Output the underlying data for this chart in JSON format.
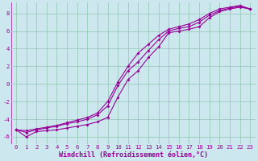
{
  "background_color": "#cce8ee",
  "grid_color": "#99ccbb",
  "line_color": "#990099",
  "marker": "D",
  "markersize": 2.0,
  "linewidth": 0.8,
  "xlabel": "Windchill (Refroidissement éolien,°C)",
  "xlabel_fontsize": 6.0,
  "tick_fontsize": 5.2,
  "xlim": [
    -0.5,
    23.5
  ],
  "ylim": [
    -6.8,
    9.2
  ],
  "yticks": [
    -6,
    -4,
    -2,
    0,
    2,
    4,
    6,
    8
  ],
  "xticks": [
    0,
    1,
    2,
    3,
    4,
    5,
    6,
    7,
    8,
    9,
    10,
    11,
    12,
    13,
    14,
    15,
    16,
    17,
    18,
    19,
    20,
    21,
    22,
    23
  ],
  "line1_x": [
    0,
    1,
    2,
    3,
    4,
    5,
    6,
    7,
    8,
    9,
    10,
    11,
    12,
    13,
    14,
    15,
    16,
    17,
    18,
    19,
    20,
    21,
    22,
    23
  ],
  "line1_y": [
    -5.2,
    -6.0,
    -5.4,
    -5.3,
    -5.2,
    -5.0,
    -4.8,
    -4.6,
    -4.3,
    -3.8,
    -1.5,
    0.5,
    1.5,
    3.0,
    4.2,
    5.8,
    6.0,
    6.2,
    6.5,
    7.5,
    8.2,
    8.5,
    8.7,
    8.5
  ],
  "line2_x": [
    0,
    1,
    2,
    3,
    4,
    5,
    6,
    7,
    8,
    9,
    10,
    11,
    12,
    13,
    14,
    15,
    16,
    17,
    18,
    19,
    20,
    21,
    22,
    23
  ],
  "line2_y": [
    -5.2,
    -5.5,
    -5.2,
    -5.0,
    -4.8,
    -4.5,
    -4.3,
    -4.0,
    -3.5,
    -2.5,
    -0.2,
    1.5,
    2.5,
    3.8,
    5.0,
    6.0,
    6.3,
    6.5,
    7.0,
    7.8,
    8.3,
    8.6,
    8.8,
    8.5
  ],
  "line3_x": [
    0,
    1,
    2,
    3,
    4,
    5,
    6,
    7,
    8,
    9,
    10,
    11,
    12,
    13,
    14,
    15,
    16,
    17,
    18,
    19,
    20,
    21,
    22,
    23
  ],
  "line3_y": [
    -5.2,
    -5.3,
    -5.1,
    -4.9,
    -4.7,
    -4.4,
    -4.1,
    -3.8,
    -3.3,
    -2.0,
    0.2,
    2.0,
    3.5,
    4.5,
    5.5,
    6.2,
    6.5,
    6.8,
    7.3,
    8.0,
    8.5,
    8.7,
    8.9,
    8.5
  ]
}
